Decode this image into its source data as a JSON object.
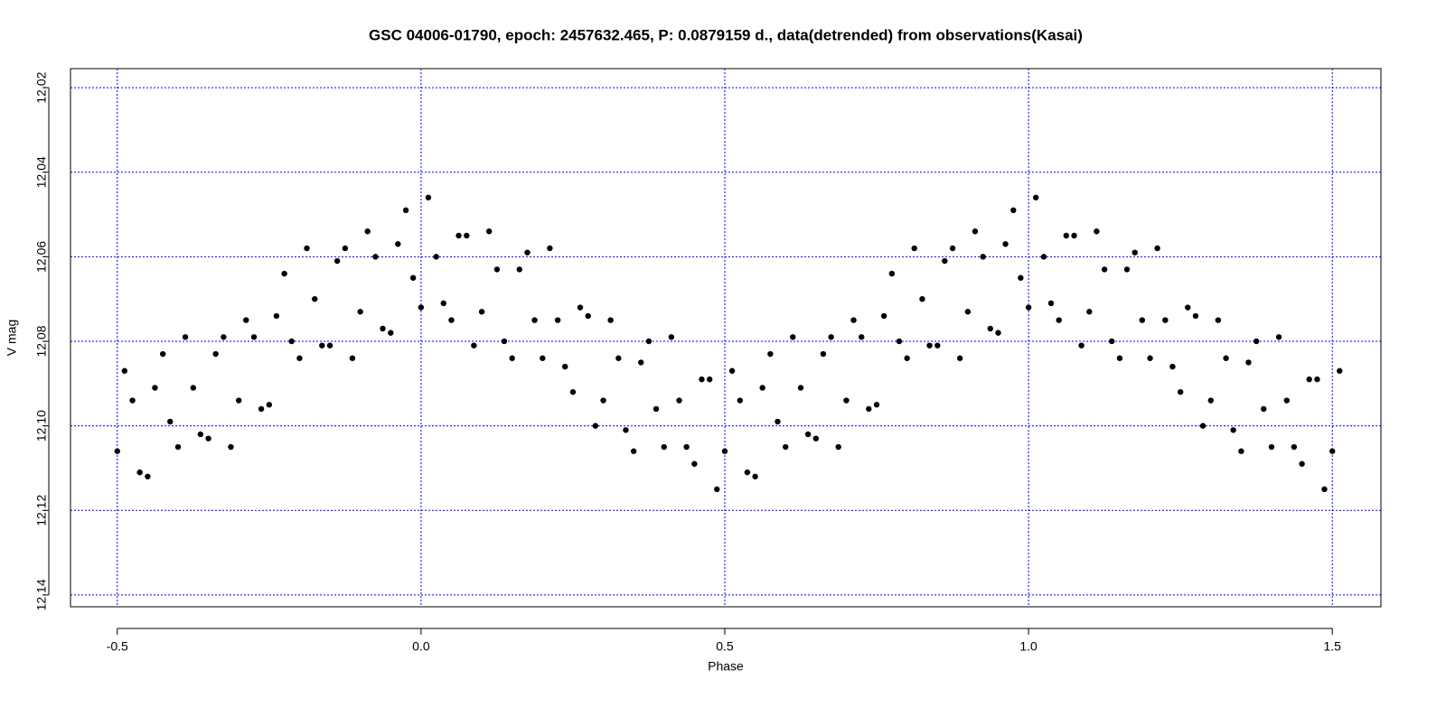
{
  "chart_data": {
    "type": "scatter",
    "title": "GSC 04006-01790, epoch: 2457632.465, P: 0.0879159 d., data(detrended) from observations(Kasai)",
    "x_label": "Phase",
    "y_label": "V mag",
    "xlim": [
      -0.577,
      1.58
    ],
    "ylim": [
      12.1428,
      12.0155
    ],
    "xticks": [
      -0.5,
      {
        "value": 0,
        "label": "0.0"
      },
      0.5,
      {
        "value": 1,
        "label": "1.0"
      },
      1.5
    ],
    "yticks": [
      12.02,
      12.04,
      12.06,
      12.08,
      {
        "value": 12.1,
        "label": "12.10"
      },
      12.12,
      12.14
    ],
    "grid": true,
    "grid_color": "#0000ff",
    "series": [
      {
        "color": "#000000",
        "x": [
          -0.5,
          -0.488,
          -0.475,
          -0.463,
          -0.45,
          -0.438,
          -0.425,
          -0.413,
          -0.4,
          -0.388,
          -0.375,
          -0.363,
          -0.35,
          -0.338,
          -0.325,
          -0.313,
          -0.3,
          -0.288,
          -0.275,
          -0.263,
          -0.25,
          -0.238,
          -0.225,
          -0.213,
          -0.2,
          -0.188,
          -0.175,
          -0.163,
          -0.15,
          -0.138,
          -0.125,
          -0.113,
          -0.1,
          -0.088,
          -0.075,
          -0.063,
          -0.05,
          -0.038,
          -0.025,
          -0.013,
          0,
          0.012,
          0.025,
          0.037,
          0.05,
          0.062,
          0.075,
          0.087,
          0.1,
          0.112,
          0.125,
          0.137,
          0.15,
          0.162,
          0.175,
          0.187,
          0.2,
          0.212,
          0.225,
          0.237,
          0.25,
          0.262,
          0.275,
          0.287,
          0.3,
          0.312,
          0.325,
          0.337,
          0.35,
          0.362,
          0.375,
          0.387,
          0.4,
          0.412,
          0.425,
          0.437,
          0.45,
          0.462,
          0.475,
          0.487,
          0.5,
          0.512,
          0.525,
          0.537,
          0.55,
          0.562,
          0.575,
          0.587,
          0.6,
          0.612,
          0.625,
          0.637,
          0.65,
          0.662,
          0.675,
          0.687,
          0.7,
          0.712,
          0.725,
          0.737,
          0.75,
          0.762,
          0.775,
          0.787,
          0.8,
          0.812,
          0.825,
          0.837,
          0.85,
          0.862,
          0.875,
          0.887,
          0.9,
          0.912,
          0.925,
          0.937,
          0.95,
          0.962,
          0.975,
          0.987,
          1,
          1.012,
          1.025,
          1.037,
          1.05,
          1.062,
          1.075,
          1.087,
          1.1,
          1.112,
          1.125,
          1.137,
          1.15,
          1.162,
          1.175,
          1.187,
          1.2,
          1.212,
          1.225,
          1.237,
          1.25,
          1.262,
          1.275,
          1.287,
          1.3,
          1.312,
          1.325,
          1.337,
          1.35,
          1.362,
          1.375,
          1.387,
          1.4,
          1.412,
          1.425,
          1.437,
          1.45,
          1.462,
          1.475,
          1.487,
          1.5,
          1.512
        ],
        "values": [
          12.106,
          12.087,
          12.094,
          12.111,
          12.112,
          12.091,
          12.083,
          12.099,
          12.105,
          12.079,
          12.091,
          12.102,
          12.103,
          12.083,
          12.079,
          12.105,
          12.094,
          12.075,
          12.079,
          12.096,
          12.095,
          12.074,
          12.064,
          12.08,
          12.084,
          12.058,
          12.07,
          12.081,
          12.081,
          12.061,
          12.058,
          12.084,
          12.073,
          12.054,
          12.06,
          12.077,
          12.078,
          12.057,
          12.049,
          12.065,
          12.072,
          12.046,
          12.06,
          12.071,
          12.075,
          12.055,
          12.055,
          12.081,
          12.073,
          12.054,
          12.063,
          12.08,
          12.084,
          12.063,
          12.059,
          12.075,
          12.084,
          12.058,
          12.075,
          12.086,
          12.092,
          12.072,
          12.074,
          12.1,
          12.094,
          12.075,
          12.084,
          12.101,
          12.106,
          12.085,
          12.08,
          12.096,
          12.105,
          12.079,
          12.094,
          12.105,
          12.109,
          12.089,
          12.089,
          12.115,
          12.106,
          12.087,
          12.094,
          12.111,
          12.112,
          12.091,
          12.083,
          12.099,
          12.105,
          12.079,
          12.091,
          12.102,
          12.103,
          12.083,
          12.079,
          12.105,
          12.094,
          12.075,
          12.079,
          12.096,
          12.095,
          12.074,
          12.064,
          12.08,
          12.084,
          12.058,
          12.07,
          12.081,
          12.081,
          12.061,
          12.058,
          12.084,
          12.073,
          12.054,
          12.06,
          12.077,
          12.078,
          12.057,
          12.049,
          12.065,
          12.072,
          12.046,
          12.06,
          12.071,
          12.075,
          12.055,
          12.055,
          12.081,
          12.073,
          12.054,
          12.063,
          12.08,
          12.084,
          12.063,
          12.059,
          12.075,
          12.084,
          12.058,
          12.075,
          12.086,
          12.092,
          12.072,
          12.074,
          12.1,
          12.094,
          12.075,
          12.084,
          12.101,
          12.106,
          12.085,
          12.08,
          12.096,
          12.105,
          12.079,
          12.094,
          12.105,
          12.109,
          12.089,
          12.089,
          12.115,
          12.106,
          12.087
        ]
      }
    ]
  }
}
